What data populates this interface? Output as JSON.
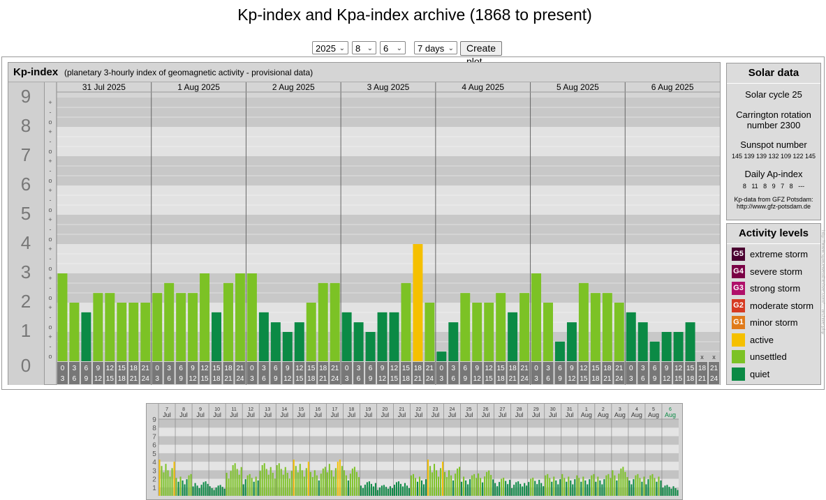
{
  "page_title": "Kp-index and Kpa-index archive (1868 to present)",
  "controls": {
    "year": "2025",
    "month": "8",
    "day": "6",
    "range": "7 days",
    "create_button": "Create plot"
  },
  "panel": {
    "title": "Kp-index",
    "subtitle": "(planetary 3-hourly index of geomagnetic activity - provisional data)"
  },
  "solar": {
    "heading": "Solar data",
    "cycle": "Solar cycle 25",
    "carrington_1": "Carrington rotation",
    "carrington_2": "number 2300",
    "sunspot_label": "Sunspot number",
    "sunspot_values": "145 139 139 132 109 122 145",
    "ap_label": "Daily Ap-index",
    "ap_values": "8   11   8   9   7   8   ---",
    "source_1": "Kp-data from  GFZ Potsdam:",
    "source_2": "http://www.gfz-potsdam.de"
  },
  "activity": {
    "heading": "Activity levels",
    "items": [
      {
        "badge": "G5",
        "label": "extreme storm",
        "color": "#4a0030"
      },
      {
        "badge": "G4",
        "label": "severe storm",
        "color": "#7a0045"
      },
      {
        "badge": "G3",
        "label": "strong storm",
        "color": "#b0106a"
      },
      {
        "badge": "G2",
        "label": "moderate storm",
        "color": "#d63a22"
      },
      {
        "badge": "G1",
        "label": "minor storm",
        "color": "#e07a1a"
      },
      {
        "badge": "",
        "label": "active",
        "color": "#f5c000"
      },
      {
        "badge": "",
        "label": "unsettled",
        "color": "#7cc225"
      },
      {
        "badge": "",
        "label": "quiet",
        "color": "#0b8a45"
      }
    ]
  },
  "side_note": "http://www.spaceweatherlive.com/... archive.php",
  "chart_data": [
    {
      "type": "bar",
      "title": "Kp-index",
      "ylim": [
        0,
        9
      ],
      "y_ticks": [
        "0",
        "1",
        "2",
        "3",
        "4",
        "5",
        "6",
        "7",
        "8",
        "9"
      ],
      "minor_ticks": [
        "o",
        "-",
        "+"
      ],
      "days": [
        "31 Jul 2025",
        "1 Aug 2025",
        "2 Aug 2025",
        "3 Aug 2025",
        "4 Aug 2025",
        "5 Aug 2025",
        "6 Aug 2025"
      ],
      "hour_start": [
        "0",
        "3",
        "6",
        "9",
        "12",
        "15",
        "18",
        "21"
      ],
      "hour_end": [
        "3",
        "6",
        "9",
        "12",
        "15",
        "18",
        "21",
        "24"
      ],
      "values": [
        3,
        2,
        1.67,
        2.33,
        2.33,
        2,
        2,
        2,
        2.33,
        2.67,
        2.33,
        2.33,
        3,
        1.67,
        2.67,
        3,
        3,
        1.67,
        1.33,
        1,
        1.33,
        2,
        2.67,
        2.67,
        1.67,
        1.33,
        1,
        1.67,
        1.67,
        2.67,
        4,
        2,
        0.33,
        1.33,
        2.33,
        2,
        2,
        2.33,
        1.67,
        2.33,
        3,
        2,
        0.67,
        1.33,
        2.67,
        2.33,
        2.33,
        2,
        1.67,
        1.33,
        0.67,
        1,
        1,
        1.33,
        null,
        null
      ],
      "missing_marker": "x",
      "colors": {
        "quiet": "#0b8a45",
        "unsettled": "#7cc225",
        "active": "#f5c000",
        "g1": "#e07a1a",
        "g2": "#d63a22"
      }
    },
    {
      "type": "bar",
      "title": "",
      "ylim": [
        0,
        9
      ],
      "y_ticks": [
        "0",
        "1",
        "2",
        "3",
        "4",
        "5",
        "6",
        "7",
        "8",
        "9"
      ],
      "days": [
        {
          "day": "7",
          "month": "Jul"
        },
        {
          "day": "8",
          "month": "Jul"
        },
        {
          "day": "9",
          "month": "Jul"
        },
        {
          "day": "10",
          "month": "Jul"
        },
        {
          "day": "11",
          "month": "Jul"
        },
        {
          "day": "12",
          "month": "Jul"
        },
        {
          "day": "13",
          "month": "Jul"
        },
        {
          "day": "14",
          "month": "Jul"
        },
        {
          "day": "15",
          "month": "Jul"
        },
        {
          "day": "16",
          "month": "Jul"
        },
        {
          "day": "17",
          "month": "Jul"
        },
        {
          "day": "18",
          "month": "Jul"
        },
        {
          "day": "19",
          "month": "Jul"
        },
        {
          "day": "20",
          "month": "Jul"
        },
        {
          "day": "21",
          "month": "Jul"
        },
        {
          "day": "22",
          "month": "Jul"
        },
        {
          "day": "23",
          "month": "Jul"
        },
        {
          "day": "24",
          "month": "Jul"
        },
        {
          "day": "25",
          "month": "Jul"
        },
        {
          "day": "26",
          "month": "Jul"
        },
        {
          "day": "27",
          "month": "Jul"
        },
        {
          "day": "28",
          "month": "Jul"
        },
        {
          "day": "29",
          "month": "Jul"
        },
        {
          "day": "30",
          "month": "Jul"
        },
        {
          "day": "31",
          "month": "Jul"
        },
        {
          "day": "1",
          "month": "Aug"
        },
        {
          "day": "2",
          "month": "Aug"
        },
        {
          "day": "3",
          "month": "Aug"
        },
        {
          "day": "4",
          "month": "Aug"
        },
        {
          "day": "5",
          "month": "Aug"
        },
        {
          "day": "6",
          "month": "Aug"
        }
      ],
      "daily_max": [
        5,
        3,
        2,
        1.5,
        4.5,
        3,
        4.5,
        4.5,
        5,
        4,
        5,
        4,
        2,
        1.5,
        2,
        3,
        5,
        4,
        3,
        3.5,
        2.5,
        2,
        2.5,
        3,
        3,
        3,
        3,
        4,
        3,
        3,
        1.5
      ]
    }
  ]
}
